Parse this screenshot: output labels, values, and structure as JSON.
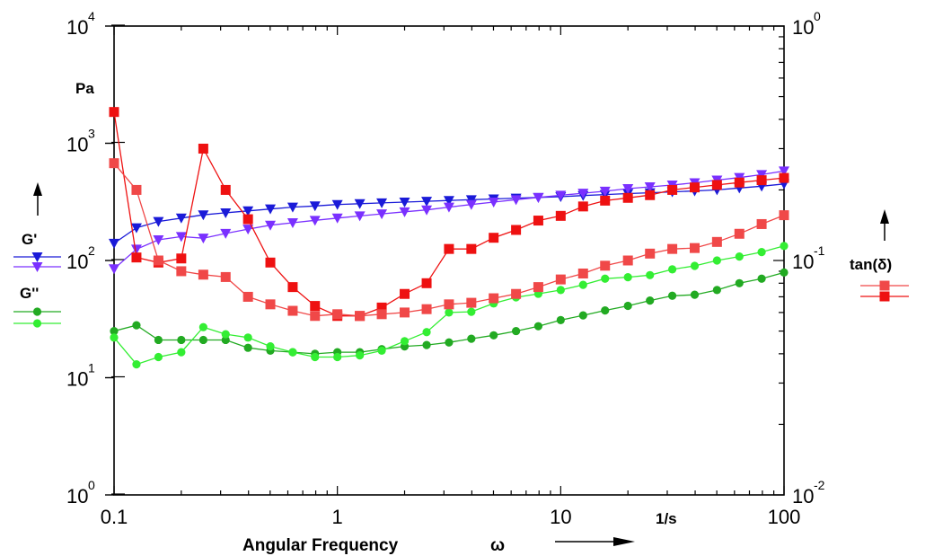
{
  "chart_data": {
    "type": "line",
    "x_scale": "log",
    "y_left_scale": "log",
    "y_right_scale": "log",
    "xlim": [
      0.1,
      100
    ],
    "ylim_left": [
      1,
      10000
    ],
    "ylim_right": [
      0.01,
      1
    ],
    "grid": false,
    "xlabel": "Angular Frequency",
    "xlabel_symbol": "ω",
    "x_unit": "1/s",
    "y_unit_left": "Pa",
    "x_ticks": [
      {
        "value": 0.1,
        "label": "0.1"
      },
      {
        "value": 1,
        "label": "1"
      },
      {
        "value": 10,
        "label": "10"
      },
      {
        "value": 100,
        "label": "100"
      }
    ],
    "y_left_ticks": [
      {
        "value": 1,
        "base": "10",
        "exp": "0"
      },
      {
        "value": 10,
        "base": "10",
        "exp": "1"
      },
      {
        "value": 100,
        "base": "10",
        "exp": "2"
      },
      {
        "value": 1000,
        "base": "10",
        "exp": "3"
      },
      {
        "value": 10000,
        "base": "10",
        "exp": "4"
      }
    ],
    "y_right_ticks": [
      {
        "value": 0.01,
        "base": "10",
        "exp": "-2"
      },
      {
        "value": 0.1,
        "base": "10",
        "exp": "-1"
      },
      {
        "value": 1,
        "base": "10",
        "exp": "0"
      }
    ],
    "legend_groups": [
      {
        "label": "G'",
        "side": "left"
      },
      {
        "label": "G''",
        "side": "left"
      },
      {
        "label": "tan(δ)",
        "side": "right"
      }
    ],
    "x": [
      0.1,
      0.126,
      0.158,
      0.2,
      0.251,
      0.316,
      0.398,
      0.501,
      0.631,
      0.794,
      1.0,
      1.26,
      1.58,
      2.0,
      2.51,
      3.16,
      3.98,
      5.01,
      6.31,
      7.94,
      10.0,
      12.6,
      15.8,
      20.0,
      25.1,
      31.6,
      39.8,
      50.1,
      63.1,
      79.4,
      100.0
    ],
    "series": [
      {
        "name": "G'",
        "axis": "left",
        "marker": "triangle-down",
        "color": "#1a1ad8",
        "values": [
          140,
          190,
          215,
          230,
          245,
          255,
          265,
          275,
          285,
          292,
          300,
          305,
          310,
          315,
          320,
          325,
          330,
          335,
          340,
          345,
          350,
          358,
          365,
          372,
          378,
          385,
          392,
          400,
          415,
          430,
          450
        ]
      },
      {
        "name": "G'",
        "axis": "left",
        "marker": "triangle-down",
        "color": "#7a30ff",
        "values": [
          85,
          125,
          150,
          160,
          155,
          170,
          185,
          200,
          210,
          220,
          230,
          240,
          250,
          260,
          270,
          285,
          300,
          315,
          330,
          345,
          360,
          375,
          390,
          410,
          425,
          440,
          460,
          485,
          510,
          540,
          580
        ]
      },
      {
        "name": "G''",
        "axis": "left",
        "marker": "circle",
        "color": "#22aa22",
        "values": [
          25,
          28,
          21,
          21,
          21,
          21,
          18,
          17,
          16.5,
          16,
          16.5,
          16.5,
          17.5,
          18.5,
          19,
          20,
          21.5,
          23,
          25,
          27.5,
          31,
          34,
          37.5,
          41,
          45.5,
          50,
          51,
          56,
          64,
          70,
          79
        ]
      },
      {
        "name": "G''",
        "axis": "left",
        "marker": "circle",
        "color": "#33ee33",
        "values": [
          22,
          13,
          15,
          16.5,
          27,
          23.5,
          22,
          18.5,
          16.5,
          15,
          15,
          15.5,
          17,
          20.5,
          24.5,
          36,
          36.5,
          43,
          48.5,
          52,
          56,
          62,
          70,
          72,
          75,
          84,
          90,
          100,
          108,
          118,
          133
        ]
      },
      {
        "name": "tan(δ)",
        "axis": "right",
        "marker": "square",
        "color": "#ee1111",
        "values": [
          0.43,
          0.103,
          0.098,
          0.102,
          0.3,
          0.2,
          0.15,
          0.098,
          0.077,
          0.064,
          0.058,
          0.058,
          0.063,
          0.072,
          0.08,
          0.112,
          0.112,
          0.125,
          0.135,
          0.148,
          0.155,
          0.17,
          0.18,
          0.185,
          0.19,
          0.2,
          0.205,
          0.21,
          0.215,
          0.22,
          0.225
        ]
      },
      {
        "name": "tan(δ)",
        "axis": "right",
        "marker": "square",
        "color": "#f04848",
        "values": [
          0.26,
          0.2,
          0.1,
          0.09,
          0.087,
          0.085,
          0.07,
          0.065,
          0.061,
          0.058,
          0.059,
          0.058,
          0.059,
          0.06,
          0.062,
          0.065,
          0.066,
          0.069,
          0.072,
          0.077,
          0.083,
          0.088,
          0.095,
          0.1,
          0.107,
          0.112,
          0.113,
          0.12,
          0.13,
          0.143,
          0.156
        ]
      }
    ]
  }
}
